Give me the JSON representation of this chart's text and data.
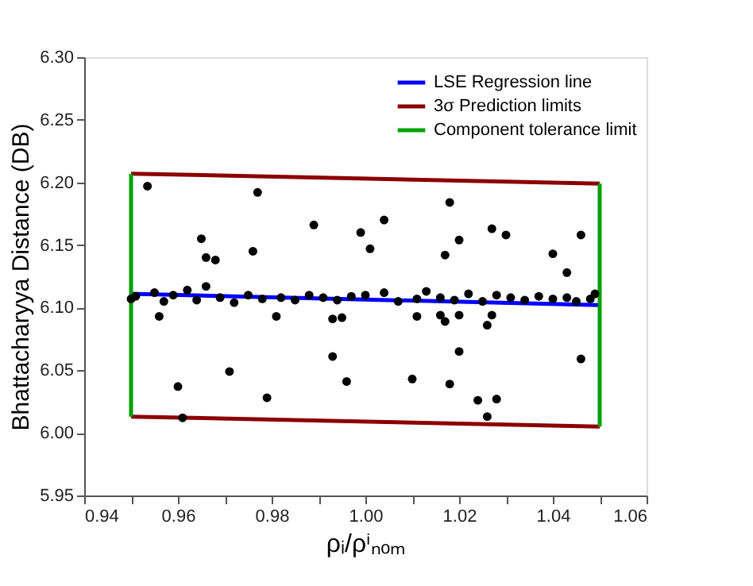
{
  "chart_data": {
    "type": "scatter",
    "xlabel": "ρᵢ/ρⁱₙₒₘ",
    "ylabel": "Bhattacharyya Distance (DB)",
    "xlim": [
      0.94,
      1.06
    ],
    "ylim": [
      5.95,
      6.3
    ],
    "xticks": [
      {
        "value": 0.94,
        "label": "0.94"
      },
      {
        "value": 0.95,
        "label": null
      },
      {
        "value": 0.96,
        "label": "0.96"
      },
      {
        "value": 0.97,
        "label": null
      },
      {
        "value": 0.98,
        "label": "0.98"
      },
      {
        "value": 0.99,
        "label": null
      },
      {
        "value": 1.0,
        "label": "1.00"
      },
      {
        "value": 1.01,
        "label": null
      },
      {
        "value": 1.02,
        "label": "1.02"
      },
      {
        "value": 1.03,
        "label": null
      },
      {
        "value": 1.04,
        "label": "1.04"
      },
      {
        "value": 1.05,
        "label": null
      },
      {
        "value": 1.06,
        "label": "1.06"
      }
    ],
    "yticks": [
      {
        "value": 5.95,
        "label": "5.95"
      },
      {
        "value": 6.0,
        "label": "6.00"
      },
      {
        "value": 6.05,
        "label": "6.05"
      },
      {
        "value": 6.1,
        "label": "6.10"
      },
      {
        "value": 6.15,
        "label": "6.15"
      },
      {
        "value": 6.2,
        "label": "6.20"
      },
      {
        "value": 6.25,
        "label": "6.25"
      },
      {
        "value": 6.3,
        "label": "6.30"
      }
    ],
    "grid": false,
    "legend": "top right",
    "series": [
      {
        "type": "scatter",
        "marker": "circle",
        "color": "#000000",
        "x": [
          0.9535,
          0.977,
          0.965,
          0.966,
          0.968,
          0.976,
          0.989,
          0.999,
          1.001,
          1.004,
          0.956,
          0.981,
          0.993,
          0.995,
          0.993,
          0.971,
          0.96,
          0.996,
          0.979,
          0.961,
          1.01,
          1.018,
          1.027,
          1.03,
          1.02,
          1.017,
          1.046,
          1.04,
          1.043,
          1.011,
          1.016,
          1.017,
          1.02,
          1.026,
          1.027,
          1.02,
          1.046,
          1.018,
          1.024,
          1.028,
          1.026,
          1.049,
          0.95,
          0.951,
          0.955,
          0.957,
          0.959,
          0.962,
          0.964,
          0.966,
          0.969,
          0.972,
          0.975,
          0.978,
          0.982,
          0.985,
          0.988,
          0.991,
          0.994,
          0.997,
          1.0,
          1.004,
          1.007,
          1.011,
          1.013,
          1.016,
          1.019,
          1.022,
          1.025,
          1.028,
          1.031,
          1.034,
          1.037,
          1.04,
          1.043,
          1.045,
          1.048
        ],
        "values": [
          6.197,
          6.192,
          6.155,
          6.14,
          6.138,
          6.145,
          6.166,
          6.16,
          6.147,
          6.17,
          6.093,
          6.093,
          6.091,
          6.092,
          6.061,
          6.049,
          6.037,
          6.041,
          6.028,
          6.012,
          6.043,
          6.184,
          6.163,
          6.158,
          6.154,
          6.142,
          6.158,
          6.143,
          6.128,
          6.093,
          6.094,
          6.089,
          6.094,
          6.086,
          6.094,
          6.065,
          6.059,
          6.039,
          6.026,
          6.027,
          6.013,
          6.111,
          6.107,
          6.109,
          6.112,
          6.105,
          6.11,
          6.114,
          6.106,
          6.117,
          6.108,
          6.104,
          6.11,
          6.107,
          6.108,
          6.106,
          6.11,
          6.108,
          6.106,
          6.109,
          6.11,
          6.112,
          6.105,
          6.107,
          6.113,
          6.108,
          6.106,
          6.111,
          6.105,
          6.11,
          6.108,
          6.106,
          6.109,
          6.107,
          6.108,
          6.105,
          6.107
        ]
      },
      {
        "type": "line",
        "marker": "none",
        "line_style": "solid",
        "name": "LSE Regression line",
        "color": "#0000ff",
        "x": [
          0.95,
          1.05
        ],
        "values": [
          6.111,
          6.102
        ]
      },
      {
        "type": "line",
        "marker": "none",
        "line_style": "solid",
        "name": "3σ Prediction limits",
        "color": "#8b0000",
        "x": [
          0.95,
          1.05
        ],
        "values": [
          6.207,
          6.199
        ]
      },
      {
        "type": "line",
        "marker": "none",
        "line_style": "solid",
        "color": "#8b0000",
        "x": [
          0.95,
          1.05
        ],
        "values": [
          6.013,
          6.005
        ]
      },
      {
        "type": "line",
        "marker": "none",
        "line_style": "solid",
        "name": "Component tolerance limit",
        "color": "#00a000",
        "x": [
          0.95,
          0.95
        ],
        "values": [
          6.013,
          6.207
        ]
      },
      {
        "type": "line",
        "marker": "none",
        "line_style": "solid",
        "color": "#00a000",
        "x": [
          1.05,
          1.05
        ],
        "values": [
          6.005,
          6.199
        ]
      }
    ]
  }
}
